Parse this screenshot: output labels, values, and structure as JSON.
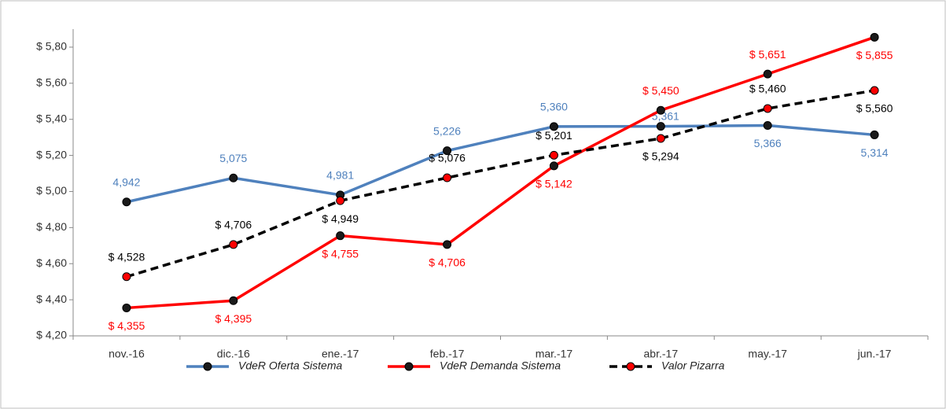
{
  "chart_data": {
    "type": "line",
    "categories": [
      "nov.-16",
      "dic.-16",
      "ene.-17",
      "feb.-17",
      "mar.-17",
      "abr.-17",
      "may.-17",
      "jun.-17"
    ],
    "ylim": [
      4.2,
      5.9
    ],
    "yticks": [
      {
        "value": 4.2,
        "label": "$ 4,20"
      },
      {
        "value": 4.4,
        "label": "$ 4,40"
      },
      {
        "value": 4.6,
        "label": "$ 4,60"
      },
      {
        "value": 4.8,
        "label": "$ 4,80"
      },
      {
        "value": 5.0,
        "label": "$ 5,00"
      },
      {
        "value": 5.2,
        "label": "$ 5,20"
      },
      {
        "value": 5.4,
        "label": "$ 5,40"
      },
      {
        "value": 5.6,
        "label": "$ 5,60"
      },
      {
        "value": 5.8,
        "label": "$ 5,80"
      }
    ],
    "series": [
      {
        "name": "VdeR Oferta Sistema",
        "color": "#4f81bd",
        "marker_color": "#1a1a1a",
        "dashed": false,
        "values": [
          4.942,
          5.075,
          4.981,
          5.226,
          5.36,
          5.361,
          5.366,
          5.314
        ],
        "value_labels": [
          "4,942",
          "5,075",
          "4,981",
          "5,226",
          "5,360",
          "5,361",
          "5,366",
          "5,314"
        ]
      },
      {
        "name": "VdeR Demanda Sistema",
        "color": "#ff0000",
        "marker_color": "#1a1a1a",
        "dashed": false,
        "values": [
          4.355,
          4.395,
          4.755,
          4.706,
          5.142,
          5.45,
          5.651,
          5.855
        ],
        "value_labels": [
          "$ 4,355",
          "$ 4,395",
          "$ 4,755",
          "$ 4,706",
          "$ 5,142",
          "$ 5,450",
          "$ 5,651",
          "$ 5,855"
        ]
      },
      {
        "name": "Valor Pizarra",
        "color": "#000000",
        "marker_color": "#ff0000",
        "dashed": true,
        "values": [
          4.528,
          4.706,
          4.949,
          5.076,
          5.201,
          5.294,
          5.46,
          5.56
        ],
        "value_labels": [
          "$ 4,528",
          "$ 4,706",
          "$ 4,949",
          "$ 5,076",
          "$ 5,201",
          "$ 5,294",
          "$ 5,460",
          "$ 5,560"
        ]
      }
    ]
  }
}
